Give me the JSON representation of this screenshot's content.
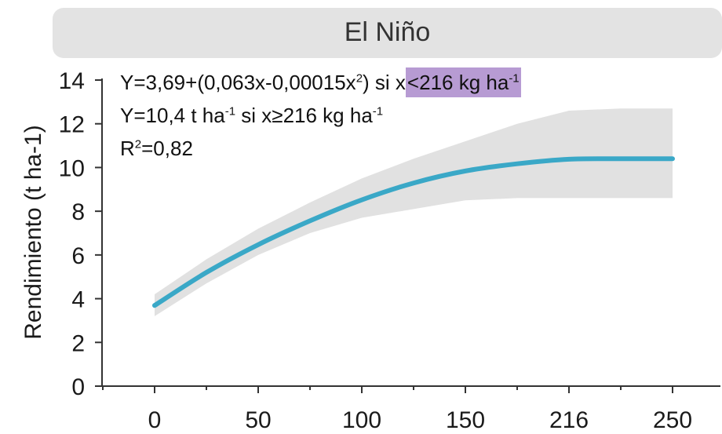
{
  "header": {
    "title": "El Niño"
  },
  "annotations": {
    "eq1_main": "Y=3,69+(0,063x-0,00015x",
    "eq1_sq": "2",
    "eq1_mid": ") si x",
    "eq1_hl": "<216 kg ha",
    "eq1_hl_sup": "-1",
    "eq2_a": "Y=10,4 t ha",
    "eq2_sup1": "-1",
    "eq2_b": " si x≥216 kg ha",
    "eq2_sup2": "-1",
    "eq3_a": "R",
    "eq3_sup": "2",
    "eq3_b": "=0,82"
  },
  "colors": {
    "line": "#3aa8c7",
    "band": "#e1e1e1",
    "highlight": "#b79bd3",
    "header_bg": "#e3e3e3"
  },
  "chart_data": {
    "type": "line",
    "title": "El Niño",
    "ylabel": "Rendimiento  (t ha-1)",
    "xlabel": "",
    "x_categories": [
      "0",
      "50",
      "100",
      "150",
      "216",
      "250"
    ],
    "ylim": [
      0,
      14
    ],
    "y_ticks": [
      0,
      2,
      4,
      6,
      8,
      10,
      12,
      14
    ],
    "grid": false,
    "series": [
      {
        "x": [
          0,
          0.5,
          1,
          1.5,
          2,
          2.5,
          3,
          3.5,
          4,
          4.5,
          5
        ],
        "values": [
          3.69,
          5.2,
          6.47,
          7.56,
          8.52,
          9.29,
          9.84,
          10.17,
          10.38,
          10.4,
          10.4
        ]
      }
    ],
    "band": {
      "x": [
        0,
        0.5,
        1,
        1.5,
        2,
        2.5,
        3,
        3.5,
        4,
        4.5,
        5
      ],
      "upper": [
        4.2,
        5.8,
        7.2,
        8.4,
        9.5,
        10.4,
        11.2,
        12.0,
        12.6,
        12.7,
        12.7
      ],
      "lower": [
        3.2,
        4.7,
        6.0,
        7.0,
        7.7,
        8.1,
        8.5,
        8.6,
        8.6,
        8.6,
        8.6
      ]
    }
  }
}
